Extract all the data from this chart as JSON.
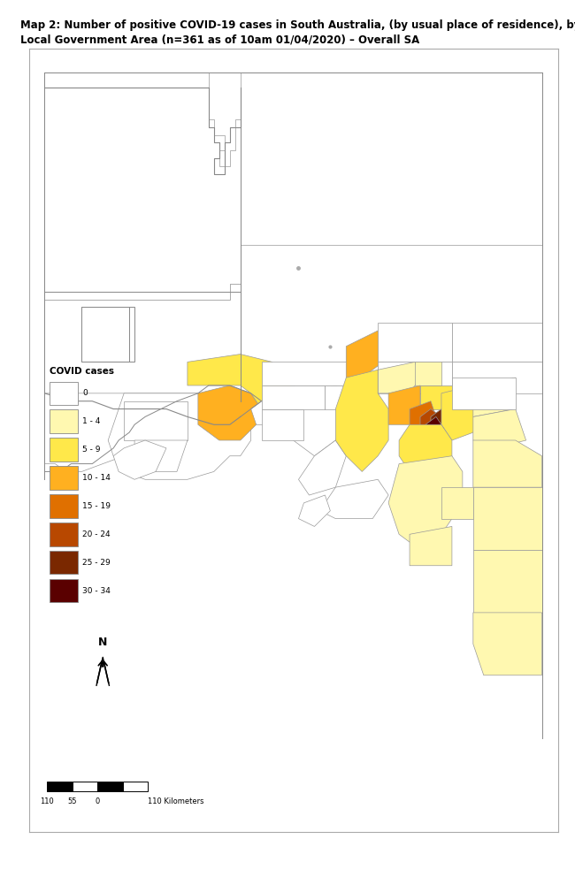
{
  "title_line1": "Map 2: Number of positive COVID-19 cases in South Australia, (by usual place of residence), by",
  "title_line2": "Local Government Area (n=361 as of 10am 01/04/2020) – Overall SA",
  "title_fontsize": 8.5,
  "legend_title": "COVID cases",
  "legend_items": [
    {
      "label": "0",
      "color": "#ffffff",
      "edgecolor": "#888888"
    },
    {
      "label": "1 - 4",
      "color": "#fff8b0",
      "edgecolor": "#888888"
    },
    {
      "label": "5 - 9",
      "color": "#ffe84a",
      "edgecolor": "#888888"
    },
    {
      "label": "10 - 14",
      "color": "#ffb020",
      "edgecolor": "#888888"
    },
    {
      "label": "15 - 19",
      "color": "#e07000",
      "edgecolor": "#888888"
    },
    {
      "label": "20 - 24",
      "color": "#b84800",
      "edgecolor": "#888888"
    },
    {
      "label": "25 - 29",
      "color": "#7a2800",
      "edgecolor": "#888888"
    },
    {
      "label": "30 - 34",
      "color": "#5a0000",
      "edgecolor": "#888888"
    }
  ],
  "map_bg": "#ffffff",
  "outer_bg": "#ffffff",
  "frame_edgecolor": "#aaaaaa"
}
